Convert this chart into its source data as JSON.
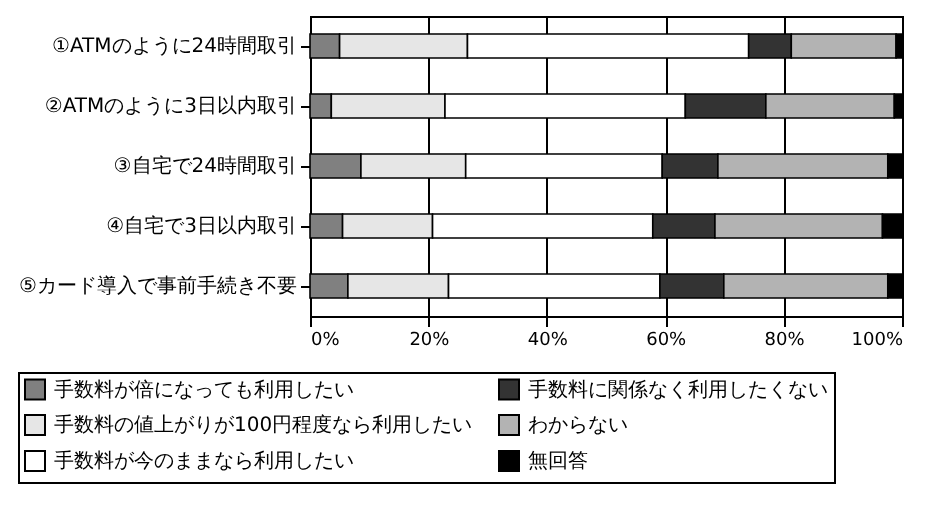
{
  "chart_data": {
    "type": "bar",
    "orientation": "horizontal",
    "stacked": true,
    "categories": [
      "①ATMのように24時間取引",
      "②ATMのように3日以内取引",
      "③自宅で24時間取引",
      "④自宅で3日以内取引",
      "⑤カード導入で事前手続き不要"
    ],
    "series": [
      {
        "name": "手数料が倍になっても利用したい",
        "color": "#808080",
        "values": [
          5,
          3.6,
          8.6,
          5.5,
          6.4
        ]
      },
      {
        "name": "手数料の値上がりが100円程度なら利用したい",
        "color": "#e6e6e6",
        "values": [
          21.6,
          19.2,
          17.7,
          15.2,
          17
        ]
      },
      {
        "name": "手数料が今のままなら利用したい",
        "color": "#ffffff",
        "values": [
          47.5,
          40.6,
          33.2,
          37.2,
          35.7
        ]
      },
      {
        "name": "手数料に関係なく利用したくない",
        "color": "#333333",
        "values": [
          7.2,
          13.6,
          9.4,
          10.5,
          10.8
        ]
      },
      {
        "name": "わからない",
        "color": "#b3b3b3",
        "values": [
          17.7,
          21.7,
          28.7,
          28.3,
          27.7
        ]
      },
      {
        "name": "無回答",
        "color": "#000000",
        "values": [
          1,
          1.3,
          2.4,
          3.3,
          2.4
        ]
      }
    ],
    "xlim": [
      0,
      100
    ],
    "xticks": [
      {
        "value": 0,
        "label": "0%"
      },
      {
        "value": 20,
        "label": "20%"
      },
      {
        "value": 40,
        "label": "40%"
      },
      {
        "value": 60,
        "label": "60%"
      },
      {
        "value": 80,
        "label": "80%"
      },
      {
        "value": 100,
        "label": "100%"
      }
    ],
    "grid": "x",
    "legend": "bottom"
  }
}
